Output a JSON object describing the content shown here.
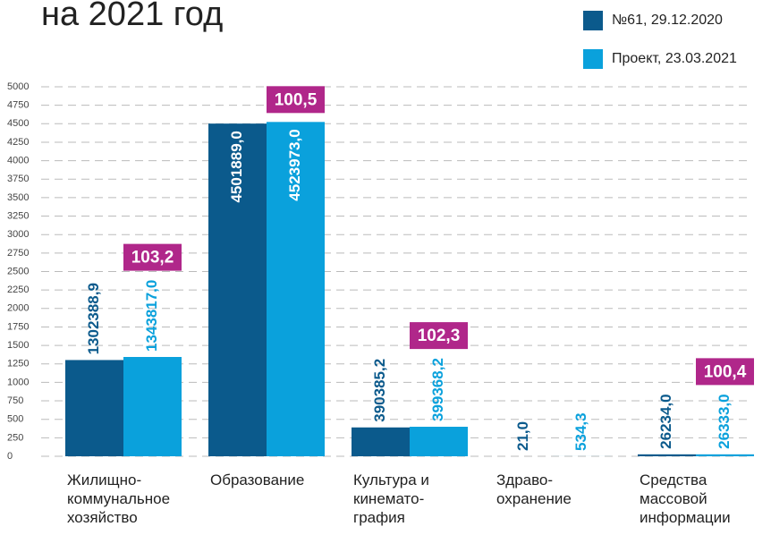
{
  "chart_data": {
    "type": "bar",
    "title": "на 2021 год",
    "categories": [
      "Жилищно-\nкоммунальное\nхозяйство",
      "Образование",
      "Культура и\nкинемато-\nграфия",
      "Здраво-\nохранение",
      "Средства\nмассовой\nинформации"
    ],
    "series": [
      {
        "name": "№61, 29.12.2020",
        "color": "#0b5a8c",
        "values": [
          1302.3889,
          4501.889,
          390.3852,
          0.021,
          26.234
        ],
        "value_labels": [
          "1302388,9",
          "4501889,0",
          "390385,2",
          "21,0",
          "26234,0"
        ]
      },
      {
        "name": "Проект, 23.03.2021",
        "color": "#0aa1dc",
        "values": [
          1343.817,
          4523.973,
          399.3682,
          0.5343,
          26.333
        ],
        "value_labels": [
          "1343817,0",
          "4523973,0",
          "399368,2",
          "534,3",
          "26333,0"
        ]
      }
    ],
    "annotations": [
      "103,2",
      "100,5",
      "102,3",
      null,
      "100,4"
    ],
    "annotation_color": "#b0278a",
    "ylim": [
      0,
      5000
    ],
    "yticks": [
      0,
      250,
      500,
      750,
      1000,
      1250,
      1500,
      1750,
      2000,
      2250,
      2500,
      2750,
      3000,
      3250,
      3500,
      3750,
      4000,
      4250,
      4500,
      4750,
      5000
    ],
    "grid": true
  }
}
